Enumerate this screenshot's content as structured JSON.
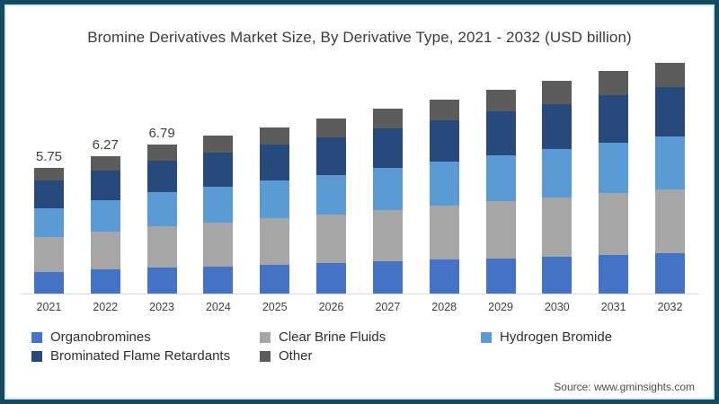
{
  "frame": {
    "border_color": "#14495e",
    "inner_edge_color": "#d5e7f0",
    "background": "#ffffff"
  },
  "title": "Bromine Derivatives Market Size, By Derivative Type, 2021 - 2032 (USD billion)",
  "source": "Source: www.gminsights.com",
  "chart_data": {
    "type": "bar",
    "stacked": true,
    "title": "Bromine Derivatives Market Size, By Derivative Type, 2021 - 2032 (USD billion)",
    "xlabel": "",
    "ylabel": "USD billion",
    "y_axis_visible": false,
    "baseline_gridline_color": "#d9d9d9",
    "categories": [
      "2021",
      "2022",
      "2023",
      "2024",
      "2025",
      "2026",
      "2027",
      "2028",
      "2029",
      "2030",
      "2031",
      "2032"
    ],
    "totals": [
      5.75,
      6.27,
      6.79,
      7.2,
      7.6,
      8.0,
      8.45,
      8.85,
      9.3,
      9.7,
      10.15,
      10.55
    ],
    "data_labels": [
      "5.75",
      "6.27",
      "6.79",
      "",
      "",
      "",
      "",
      "",
      "",
      "",
      "",
      ""
    ],
    "series": [
      {
        "name": "Organobromines",
        "color": "#4472c4",
        "values": [
          1.0,
          1.09,
          1.18,
          1.25,
          1.32,
          1.39,
          1.47,
          1.54,
          1.62,
          1.69,
          1.77,
          1.84
        ]
      },
      {
        "name": "Clear Brine Fluids",
        "color": "#a6a6a6",
        "values": [
          1.6,
          1.74,
          1.89,
          2.0,
          2.11,
          2.22,
          2.35,
          2.46,
          2.59,
          2.7,
          2.82,
          2.93
        ]
      },
      {
        "name": "Hydrogen Bromide",
        "color": "#5b9bd5",
        "values": [
          1.31,
          1.43,
          1.55,
          1.64,
          1.73,
          1.82,
          1.93,
          2.02,
          2.12,
          2.21,
          2.31,
          2.4
        ]
      },
      {
        "name": "Brominated Flame Retardants",
        "color": "#27497c",
        "values": [
          1.24,
          1.34,
          1.45,
          1.54,
          1.63,
          1.71,
          1.81,
          1.89,
          1.99,
          2.07,
          2.17,
          2.26
        ]
      },
      {
        "name": "Other",
        "color": "#5c5c5c",
        "values": [
          0.6,
          0.67,
          0.72,
          0.77,
          0.81,
          0.86,
          0.89,
          0.94,
          0.98,
          1.03,
          1.08,
          1.12
        ]
      }
    ],
    "legend_position": "bottom-left",
    "legend_rows": [
      [
        0,
        1,
        2
      ],
      [
        3,
        4
      ]
    ]
  }
}
